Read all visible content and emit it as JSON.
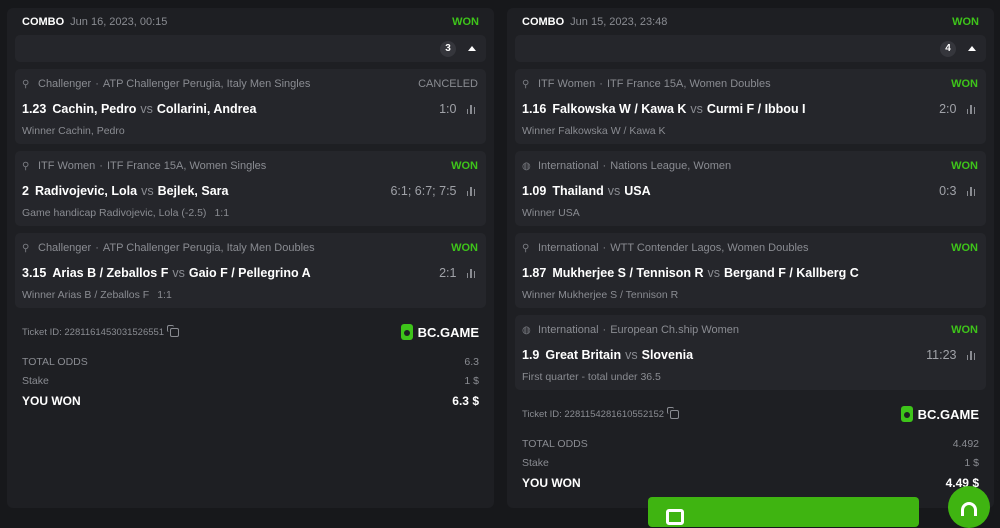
{
  "colors": {
    "won": "#3ec41a",
    "background": "#17181b",
    "card": "#1e1f23"
  },
  "tickets": [
    {
      "type": "COMBO",
      "date": "Jun 16, 2023, 00:15",
      "status": "WON",
      "count": "3",
      "bets": [
        {
          "icon": "tennis-icon",
          "category": "Challenger",
          "tournament": "ATP Challenger Perugia, Italy Men Singles",
          "status": "CANCELED",
          "odds": "1.23",
          "home": "Cachin, Pedro",
          "away": "Collarini, Andrea",
          "score": "1:0",
          "market": "Winner Cachin, Pedro",
          "handicap": ""
        },
        {
          "icon": "tennis-icon",
          "category": "ITF Women",
          "tournament": "ITF France 15A, Women Singles",
          "status": "WON",
          "odds": "2",
          "home": "Radivojevic, Lola",
          "away": "Bejlek, Sara",
          "score": "6:1; 6:7; 7:5",
          "market": "Game handicap Radivojevic, Lola (-2.5)",
          "handicap": "1:1"
        },
        {
          "icon": "tennis-icon",
          "category": "Challenger",
          "tournament": "ATP Challenger Perugia, Italy Men Doubles",
          "status": "WON",
          "odds": "3.15",
          "home": "Arias B / Zeballos F",
          "away": "Gaio F / Pellegrino A",
          "score": "2:1",
          "market": "Winner Arias B / Zeballos F",
          "handicap": "1:1"
        }
      ],
      "ticket_id": "Ticket ID: 2281161453031526551",
      "brand": "BC.GAME",
      "total_odds_label": "TOTAL ODDS",
      "total_odds": "6.3",
      "stake_label": "Stake",
      "stake": "1 $",
      "won_label": "YOU WON",
      "won_amount": "6.3 $"
    },
    {
      "type": "COMBO",
      "date": "Jun 15, 2023, 23:48",
      "status": "WON",
      "count": "4",
      "bets": [
        {
          "icon": "tennis-icon",
          "category": "ITF Women",
          "tournament": "ITF France 15A, Women Doubles",
          "status": "WON",
          "odds": "1.16",
          "home": "Falkowska W / Kawa K",
          "away": "Curmi F / Ibbou I",
          "score": "2:0",
          "market": "Winner Falkowska W / Kawa K",
          "handicap": ""
        },
        {
          "icon": "volleyball-icon",
          "category": "International",
          "tournament": "Nations League, Women",
          "status": "WON",
          "odds": "1.09",
          "home": "Thailand",
          "away": "USA",
          "score": "0:3",
          "market": "Winner USA",
          "handicap": ""
        },
        {
          "icon": "table-tennis-icon",
          "category": "International",
          "tournament": "WTT Contender Lagos, Women Doubles",
          "status": "WON",
          "odds": "1.87",
          "home": "Mukherjee S / Tennison R",
          "away": "Bergand F / Kallberg C",
          "score": "",
          "market": "Winner Mukherjee S / Tennison R",
          "handicap": ""
        },
        {
          "icon": "basketball-icon",
          "category": "International",
          "tournament": "European Ch.ship Women",
          "status": "WON",
          "odds": "1.9",
          "home": "Great Britain",
          "away": "Slovenia",
          "score": "11:23",
          "market": "First quarter - total under 36.5",
          "handicap": ""
        }
      ],
      "ticket_id": "Ticket ID: 2281154281610552152",
      "brand": "BC.GAME",
      "total_odds_label": "TOTAL ODDS",
      "total_odds": "4.492",
      "stake_label": "Stake",
      "stake": "1 $",
      "won_label": "YOU WON",
      "won_amount": "4.49 $"
    }
  ],
  "vs": "vs",
  "separator": "·"
}
